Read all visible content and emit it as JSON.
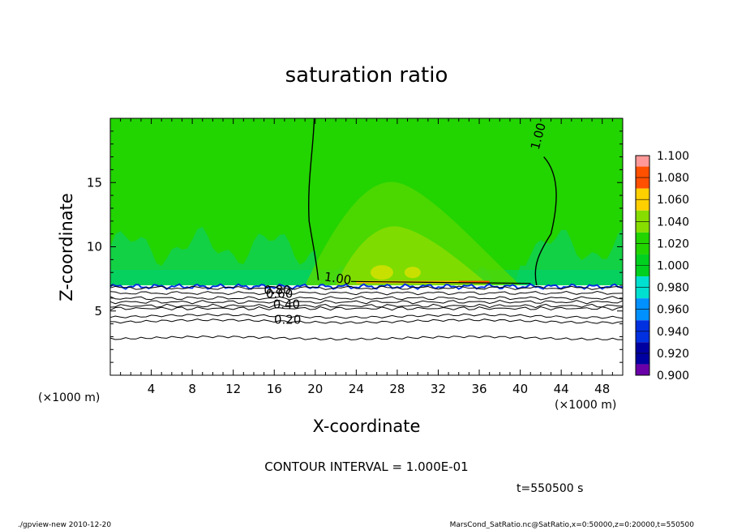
{
  "chart_data": {
    "type": "heatmap",
    "title": "saturation ratio",
    "xlabel": "X-coordinate",
    "ylabel": "Z-coordinate",
    "x_unit_label": "(×1000 m)",
    "xlim": [
      0,
      50
    ],
    "ylim": [
      0,
      20
    ],
    "x_ticks": [
      4,
      8,
      12,
      16,
      20,
      24,
      28,
      32,
      36,
      40,
      44,
      48
    ],
    "y_ticks": [
      5,
      10,
      15
    ],
    "colorbar": {
      "levels": [
        "0.900",
        "0.920",
        "0.940",
        "0.960",
        "0.980",
        "1.000",
        "1.020",
        "1.040",
        "1.060",
        "1.080",
        "1.100"
      ],
      "colors": [
        "#6a00a8",
        "#0000a0",
        "#0030e0",
        "#0090ff",
        "#00e0d0",
        "#00d020",
        "#22d400",
        "#88dd00",
        "#ffd000",
        "#ff5000",
        "#ff9999"
      ]
    },
    "contour_labels": [
      {
        "text": "1.00",
        "x": 41.8,
        "z": 18.6
      },
      {
        "text": "1.00",
        "x": 22.2,
        "z": 7.5
      },
      {
        "text": "0.80",
        "x": 16.3,
        "z": 6.6
      },
      {
        "text": "0.60",
        "x": 16.5,
        "z": 6.3
      },
      {
        "text": "0.40",
        "x": 17.2,
        "z": 5.5
      },
      {
        "text": "0.20",
        "x": 17.3,
        "z": 4.3
      }
    ],
    "contour_levels_z": [
      {
        "level": 0.9,
        "z": 6.8
      },
      {
        "level": 0.8,
        "z": 6.4
      },
      {
        "level": 0.7,
        "z": 6.0
      },
      {
        "level": 0.6,
        "z": 5.7
      },
      {
        "level": 0.5,
        "z": 5.4
      },
      {
        "level": 0.4,
        "z": 5.2
      },
      {
        "level": 0.3,
        "z": 4.6
      },
      {
        "level": 0.2,
        "z": 4.2
      },
      {
        "level": 0.1,
        "z": 2.9
      }
    ],
    "contour_interval": "CONTOUR INTERVAL = 1.000E-01",
    "time_label": "t=550500 s"
  },
  "footer": {
    "left": "./gpview-new  2010-12-20",
    "right": "MarsCond_SatRatio.nc@SatRatio,x=0:50000,z=0:20000,t=550500"
  }
}
